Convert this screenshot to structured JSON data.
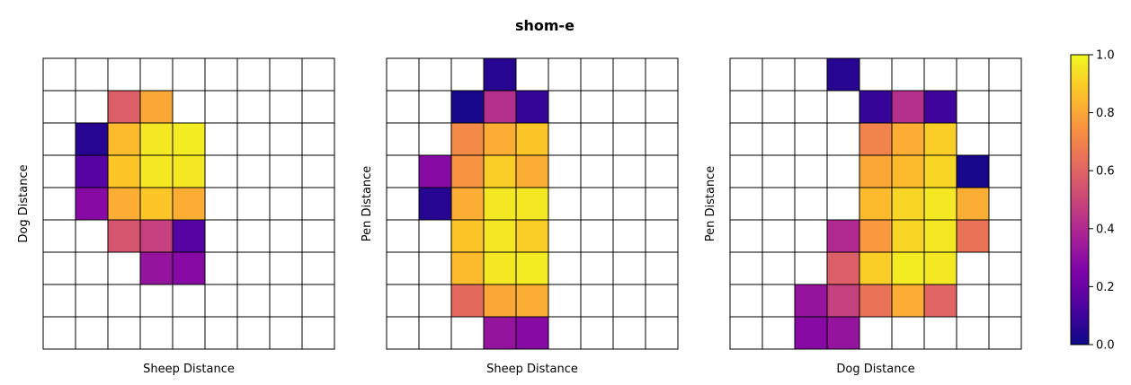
{
  "figure_title": "shom-e",
  "colors": {
    "cell_border": "#000000",
    "empty_cell": "#ffffff",
    "colormap": "plasma"
  },
  "chart_data": [
    {
      "type": "heatmap",
      "title": "",
      "xlabel": "Sheep Distance",
      "ylabel": "Dog Distance",
      "grid": true,
      "rows": 9,
      "cols": 9,
      "values": [
        [
          null,
          null,
          null,
          null,
          null,
          null,
          null,
          null,
          null
        ],
        [
          null,
          null,
          0.58,
          0.8,
          null,
          null,
          null,
          null,
          null
        ],
        [
          null,
          0.05,
          0.85,
          0.96,
          0.97,
          null,
          null,
          null,
          null
        ],
        [
          null,
          0.15,
          0.88,
          0.96,
          0.96,
          null,
          null,
          null,
          null
        ],
        [
          null,
          0.28,
          0.82,
          0.88,
          0.82,
          null,
          null,
          null,
          null
        ],
        [
          null,
          null,
          0.55,
          0.48,
          0.15,
          null,
          null,
          null,
          null
        ],
        [
          null,
          null,
          null,
          0.32,
          0.28,
          null,
          null,
          null,
          null
        ],
        [
          null,
          null,
          null,
          null,
          null,
          null,
          null,
          null,
          null
        ],
        [
          null,
          null,
          null,
          null,
          null,
          null,
          null,
          null,
          null
        ]
      ]
    },
    {
      "type": "heatmap",
      "title": "",
      "xlabel": "Sheep Distance",
      "ylabel": "Pen Distance",
      "grid": true,
      "rows": 9,
      "cols": 9,
      "values": [
        [
          null,
          null,
          null,
          0.05,
          null,
          null,
          null,
          null,
          null
        ],
        [
          null,
          null,
          0.02,
          0.42,
          0.08,
          null,
          null,
          null,
          null
        ],
        [
          null,
          null,
          0.72,
          0.82,
          0.88,
          null,
          null,
          null,
          null
        ],
        [
          null,
          0.28,
          0.75,
          0.9,
          0.82,
          null,
          null,
          null,
          null
        ],
        [
          null,
          0.05,
          0.82,
          0.96,
          0.96,
          null,
          null,
          null,
          null
        ],
        [
          null,
          null,
          0.88,
          0.96,
          0.9,
          null,
          null,
          null,
          null
        ],
        [
          null,
          null,
          0.85,
          0.96,
          0.97,
          null,
          null,
          null,
          null
        ],
        [
          null,
          null,
          0.62,
          0.8,
          0.82,
          null,
          null,
          null,
          null
        ],
        [
          null,
          null,
          null,
          0.32,
          0.28,
          null,
          null,
          null,
          null
        ]
      ]
    },
    {
      "type": "heatmap",
      "title": "",
      "xlabel": "Dog Distance",
      "ylabel": "Pen Distance",
      "grid": true,
      "rows": 9,
      "cols": 9,
      "values": [
        [
          null,
          null,
          null,
          0.05,
          null,
          null,
          null,
          null,
          null
        ],
        [
          null,
          null,
          null,
          null,
          0.08,
          0.42,
          0.1,
          null,
          null
        ],
        [
          null,
          null,
          null,
          null,
          0.7,
          0.82,
          0.9,
          null,
          null
        ],
        [
          null,
          null,
          null,
          null,
          0.8,
          0.85,
          0.92,
          0.02,
          null
        ],
        [
          null,
          null,
          null,
          null,
          0.85,
          0.92,
          0.96,
          0.82,
          null
        ],
        [
          null,
          null,
          null,
          0.4,
          0.76,
          0.92,
          0.96,
          0.65,
          null
        ],
        [
          null,
          null,
          null,
          0.58,
          0.9,
          0.97,
          0.96,
          null,
          null
        ],
        [
          null,
          null,
          0.32,
          0.48,
          0.65,
          0.82,
          0.6,
          null,
          null
        ],
        [
          null,
          null,
          0.28,
          0.32,
          null,
          null,
          null,
          null,
          null
        ]
      ]
    }
  ],
  "colorbar": {
    "min": 0.0,
    "max": 1.0,
    "ticks": [
      "0.0",
      "0.2",
      "0.4",
      "0.6",
      "0.8",
      "1.0"
    ]
  }
}
